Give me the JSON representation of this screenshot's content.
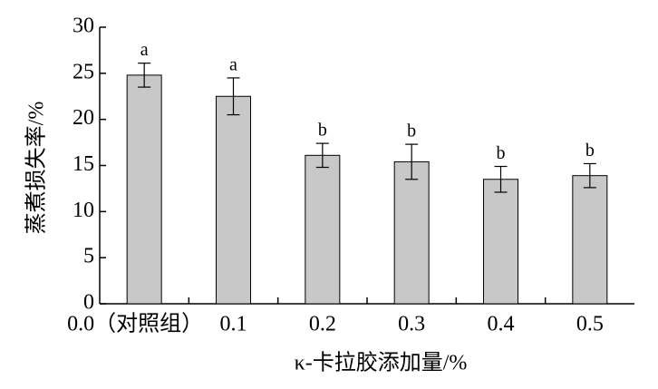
{
  "chart_data": {
    "type": "bar",
    "categories": [
      "0.0（对照组）",
      "0.1",
      "0.2",
      "0.3",
      "0.4",
      "0.5"
    ],
    "values": [
      24.8,
      22.5,
      16.1,
      15.4,
      13.5,
      13.9
    ],
    "errors": [
      1.3,
      2.0,
      1.3,
      1.9,
      1.4,
      1.3
    ],
    "annotations": [
      "a",
      "a",
      "b",
      "b",
      "b",
      "b"
    ],
    "color": "#c8c8c8",
    "ylim": [
      0,
      30
    ],
    "yticks": [
      0,
      5,
      10,
      15,
      20,
      25,
      30
    ],
    "xlabel": "κ-卡拉胶添加量/%",
    "ylabel": "蒸煮损失率/%"
  }
}
